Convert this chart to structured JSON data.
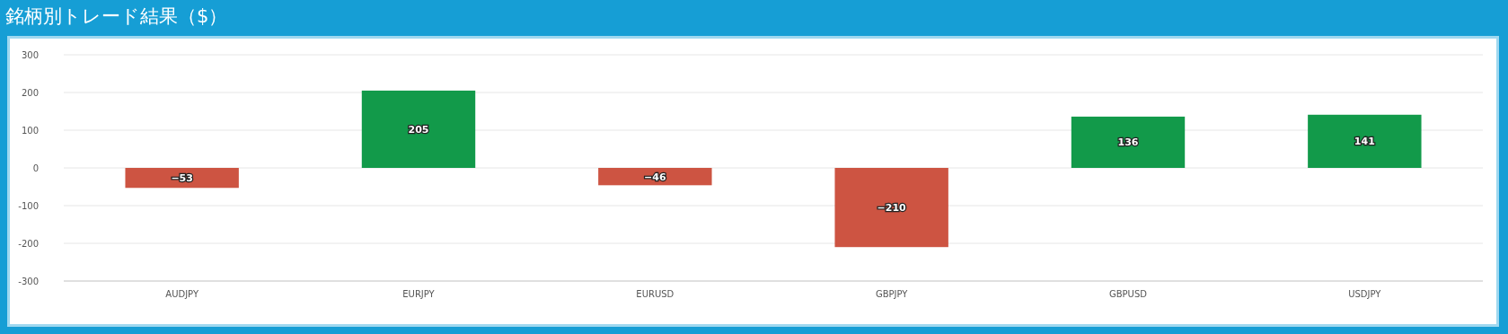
{
  "chart_data": {
    "type": "bar",
    "title": "銘柄別トレード結果（$）",
    "categories": [
      "AUDJPY",
      "EURJPY",
      "EURUSD",
      "GBPJPY",
      "GBPUSD",
      "USDJPY"
    ],
    "values": [
      -53,
      205,
      -46,
      -210,
      136,
      141
    ],
    "colors": [
      "#cd5442",
      "#129a4a",
      "#cd5442",
      "#cd5442",
      "#129a4a",
      "#129a4a"
    ],
    "ylim": [
      -300,
      300
    ],
    "yticks": [
      -300,
      -200,
      -100,
      0,
      100,
      200,
      300
    ],
    "grid": "y",
    "data_labels": true
  }
}
